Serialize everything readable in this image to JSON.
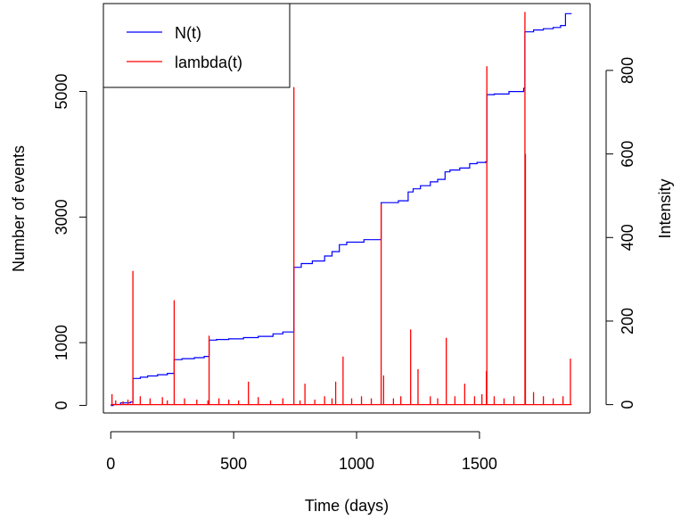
{
  "chart_data": {
    "type": "line",
    "xlabel": "Time (days)",
    "ylabel_left": "Number of events",
    "ylabel_right": "Intensity",
    "xlim": [
      -30,
      1950
    ],
    "ylim_left": [
      -120,
      6400
    ],
    "ylim_right": [
      -20,
      960
    ],
    "x_ticks": [
      0,
      500,
      1000,
      1500
    ],
    "y_left_ticks": [
      0,
      1000,
      3000,
      5000
    ],
    "y_right_ticks": [
      0,
      200,
      400,
      600,
      800
    ],
    "legend": {
      "position": "top-left",
      "entries": [
        {
          "label": "N(t)",
          "color": "#0000ff"
        },
        {
          "label": "lambda(t)",
          "color": "#ff0000"
        }
      ]
    },
    "series": [
      {
        "name": "N(t)",
        "axis": "left",
        "color": "#0000ff",
        "style": "step",
        "points": [
          [
            0,
            0
          ],
          [
            10,
            15
          ],
          [
            40,
            40
          ],
          [
            80,
            55
          ],
          [
            90,
            430
          ],
          [
            120,
            450
          ],
          [
            150,
            470
          ],
          [
            190,
            490
          ],
          [
            230,
            510
          ],
          [
            258,
            730
          ],
          [
            290,
            745
          ],
          [
            340,
            760
          ],
          [
            380,
            780
          ],
          [
            400,
            1040
          ],
          [
            430,
            1050
          ],
          [
            480,
            1060
          ],
          [
            540,
            1080
          ],
          [
            600,
            1100
          ],
          [
            660,
            1140
          ],
          [
            700,
            1170
          ],
          [
            742,
            1170
          ],
          [
            745,
            2200
          ],
          [
            775,
            2260
          ],
          [
            820,
            2300
          ],
          [
            870,
            2380
          ],
          [
            900,
            2450
          ],
          [
            930,
            2560
          ],
          [
            960,
            2600
          ],
          [
            1030,
            2640
          ],
          [
            1095,
            2640
          ],
          [
            1100,
            3230
          ],
          [
            1170,
            3260
          ],
          [
            1210,
            3400
          ],
          [
            1230,
            3450
          ],
          [
            1260,
            3500
          ],
          [
            1300,
            3560
          ],
          [
            1330,
            3600
          ],
          [
            1360,
            3720
          ],
          [
            1380,
            3750
          ],
          [
            1420,
            3780
          ],
          [
            1460,
            3850
          ],
          [
            1490,
            3870
          ],
          [
            1525,
            3880
          ],
          [
            1530,
            4950
          ],
          [
            1560,
            4960
          ],
          [
            1620,
            5000
          ],
          [
            1680,
            5050
          ],
          [
            1685,
            5950
          ],
          [
            1720,
            5980
          ],
          [
            1760,
            6000
          ],
          [
            1800,
            6020
          ],
          [
            1830,
            6050
          ],
          [
            1850,
            6240
          ],
          [
            1875,
            6240
          ]
        ]
      },
      {
        "name": "lambda(t)",
        "axis": "right",
        "color": "#ff0000",
        "style": "spikes",
        "points": [
          [
            5,
            25
          ],
          [
            20,
            10
          ],
          [
            50,
            8
          ],
          [
            70,
            12
          ],
          [
            90,
            320
          ],
          [
            120,
            20
          ],
          [
            160,
            15
          ],
          [
            210,
            18
          ],
          [
            230,
            10
          ],
          [
            258,
            250
          ],
          [
            300,
            15
          ],
          [
            350,
            12
          ],
          [
            395,
            10
          ],
          [
            400,
            165
          ],
          [
            440,
            15
          ],
          [
            480,
            12
          ],
          [
            520,
            10
          ],
          [
            560,
            55
          ],
          [
            600,
            18
          ],
          [
            650,
            10
          ],
          [
            700,
            15
          ],
          [
            745,
            760
          ],
          [
            770,
            10
          ],
          [
            790,
            50
          ],
          [
            830,
            12
          ],
          [
            870,
            20
          ],
          [
            900,
            15
          ],
          [
            915,
            55
          ],
          [
            945,
            115
          ],
          [
            980,
            15
          ],
          [
            1020,
            20
          ],
          [
            1060,
            15
          ],
          [
            1100,
            480
          ],
          [
            1110,
            70
          ],
          [
            1150,
            15
          ],
          [
            1180,
            20
          ],
          [
            1220,
            180
          ],
          [
            1250,
            85
          ],
          [
            1300,
            20
          ],
          [
            1330,
            15
          ],
          [
            1365,
            160
          ],
          [
            1400,
            20
          ],
          [
            1440,
            50
          ],
          [
            1480,
            20
          ],
          [
            1510,
            25
          ],
          [
            1528,
            80
          ],
          [
            1530,
            810
          ],
          [
            1560,
            20
          ],
          [
            1600,
            15
          ],
          [
            1640,
            20
          ],
          [
            1685,
            940
          ],
          [
            1687,
            600
          ],
          [
            1720,
            30
          ],
          [
            1760,
            20
          ],
          [
            1800,
            15
          ],
          [
            1840,
            20
          ],
          [
            1870,
            110
          ]
        ]
      }
    ]
  }
}
